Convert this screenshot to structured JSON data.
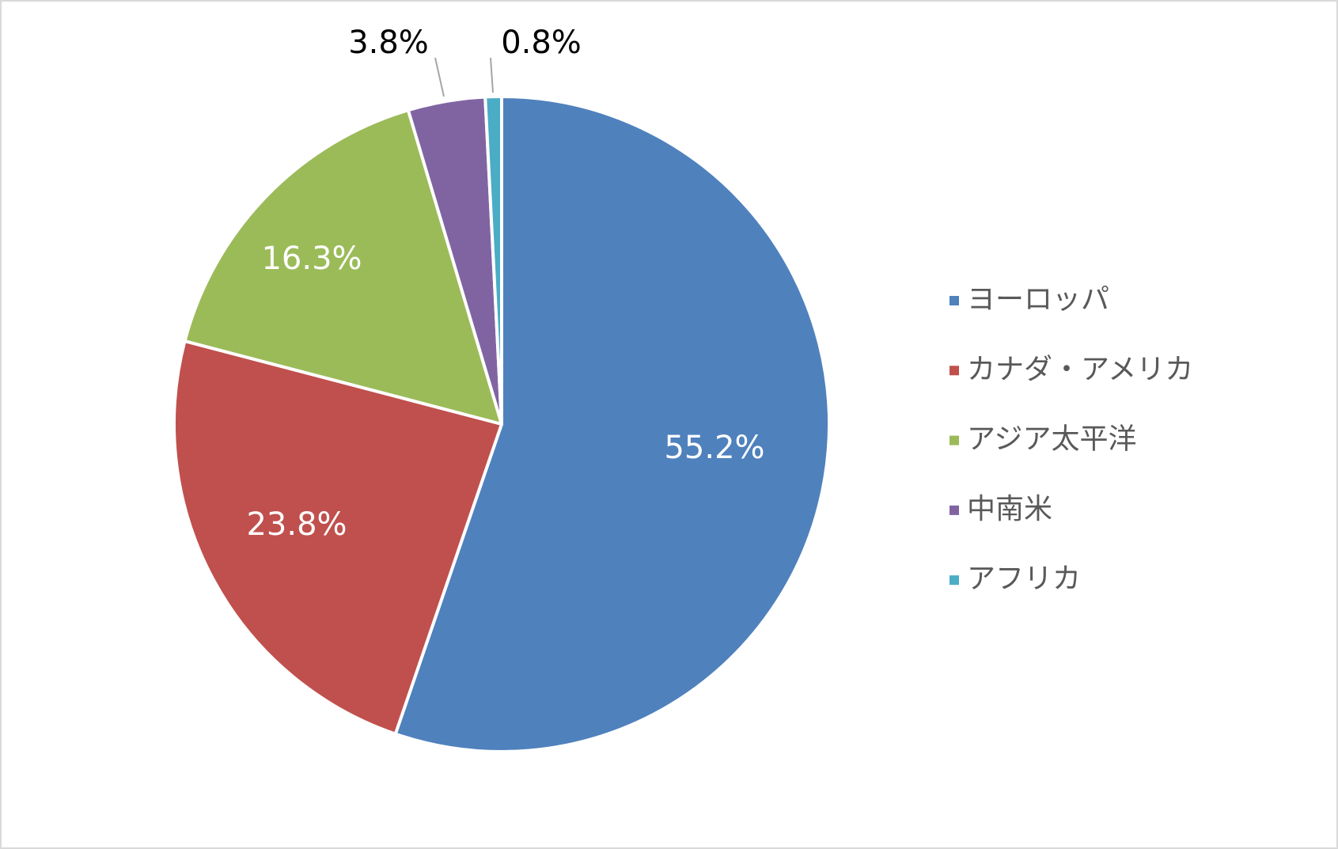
{
  "chart_data": {
    "type": "pie",
    "categories": [
      "ヨーロッパ",
      "カナダ・アメリカ",
      "アジア太平洋",
      "中南米",
      "アフリカ"
    ],
    "values": [
      55.2,
      23.8,
      16.3,
      3.8,
      0.8
    ],
    "value_labels": [
      "55.2%",
      "23.8%",
      "16.3%",
      "3.8%",
      "0.8%"
    ],
    "colors": [
      "#4f81bd",
      "#c0504d",
      "#9bbb59",
      "#8064a2",
      "#4bacc6"
    ],
    "legend": "right"
  }
}
